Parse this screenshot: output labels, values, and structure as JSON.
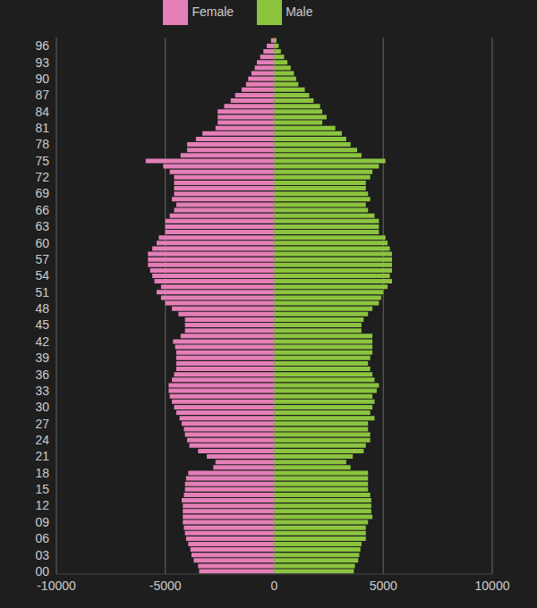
{
  "chart_data": {
    "type": "bar",
    "orientation": "horizontal",
    "stacked": true,
    "grid": true,
    "legend": "top",
    "categories": [
      "00",
      null,
      null,
      "03",
      null,
      null,
      "06",
      null,
      null,
      "09",
      null,
      null,
      "12",
      null,
      null,
      "15",
      null,
      null,
      "18",
      null,
      null,
      "21",
      null,
      null,
      "24",
      null,
      null,
      "27",
      null,
      null,
      "30",
      null,
      null,
      "33",
      null,
      null,
      "36",
      null,
      null,
      "39",
      null,
      null,
      "42",
      null,
      null,
      "45",
      null,
      null,
      "48",
      null,
      null,
      "51",
      null,
      null,
      "54",
      null,
      null,
      "57",
      null,
      null,
      "60",
      null,
      null,
      "63",
      null,
      null,
      "66",
      null,
      null,
      "69",
      null,
      null,
      "72",
      null,
      null,
      "75",
      null,
      null,
      "78",
      null,
      null,
      "81",
      null,
      null,
      "84",
      null,
      null,
      "87",
      null,
      null,
      "90",
      null,
      null,
      "93",
      null,
      null,
      "96",
      null
    ],
    "series": [
      {
        "name": "Female",
        "color": "#e57fb8",
        "values": [
          -3450,
          -3500,
          -3700,
          -3800,
          -3850,
          -3950,
          -4050,
          -4100,
          -4150,
          -4200,
          -4200,
          -4200,
          -4200,
          -4250,
          -4150,
          -4100,
          -4100,
          -4050,
          -3950,
          -2800,
          -2700,
          -3100,
          -3500,
          -3900,
          -4000,
          -4100,
          -4150,
          -4250,
          -4350,
          -4500,
          -4600,
          -4700,
          -4800,
          -4850,
          -4850,
          -4700,
          -4600,
          -4500,
          -4500,
          -4500,
          -4500,
          -4550,
          -4650,
          -4300,
          -4100,
          -4100,
          -4100,
          -4400,
          -4700,
          -5000,
          -5200,
          -5400,
          -5200,
          -5500,
          -5600,
          -5700,
          -5800,
          -5800,
          -5800,
          -5600,
          -5400,
          -5300,
          -5000,
          -5000,
          -5000,
          -4800,
          -4600,
          -4500,
          -4700,
          -4600,
          -4600,
          -4600,
          -4600,
          -4800,
          -5100,
          -5900,
          -4300,
          -4000,
          -4000,
          -3600,
          -3300,
          -2700,
          -2600,
          -2600,
          -2600,
          -2300,
          -2000,
          -1800,
          -1500,
          -1300,
          -1200,
          -1050,
          -900,
          -800,
          -650,
          -500,
          -350,
          -150
        ]
      },
      {
        "name": "Male",
        "color": "#8cc43f",
        "values": [
          3650,
          3700,
          3850,
          3900,
          3950,
          4000,
          4200,
          4200,
          4200,
          4300,
          4500,
          4450,
          4450,
          4450,
          4400,
          4300,
          4300,
          4300,
          4300,
          3500,
          3300,
          3600,
          4100,
          4200,
          4400,
          4400,
          4300,
          4300,
          4600,
          4400,
          4500,
          4600,
          4500,
          4700,
          4800,
          4600,
          4500,
          4400,
          4300,
          4400,
          4500,
          4500,
          4500,
          4500,
          4000,
          4000,
          4100,
          4300,
          4500,
          4800,
          4900,
          5000,
          5200,
          5400,
          5300,
          5400,
          5400,
          5400,
          5400,
          5300,
          5200,
          5100,
          4800,
          4800,
          4800,
          4600,
          4300,
          4200,
          4400,
          4300,
          4200,
          4200,
          4400,
          4500,
          4800,
          5100,
          4000,
          3800,
          3500,
          3300,
          3100,
          2800,
          2200,
          2400,
          2200,
          2100,
          1800,
          1600,
          1400,
          1100,
          1000,
          900,
          750,
          600,
          450,
          300,
          200,
          100
        ]
      }
    ],
    "xlim": [
      -10000,
      10000
    ],
    "xticks": [
      -10000,
      -5000,
      0,
      5000,
      10000
    ]
  }
}
